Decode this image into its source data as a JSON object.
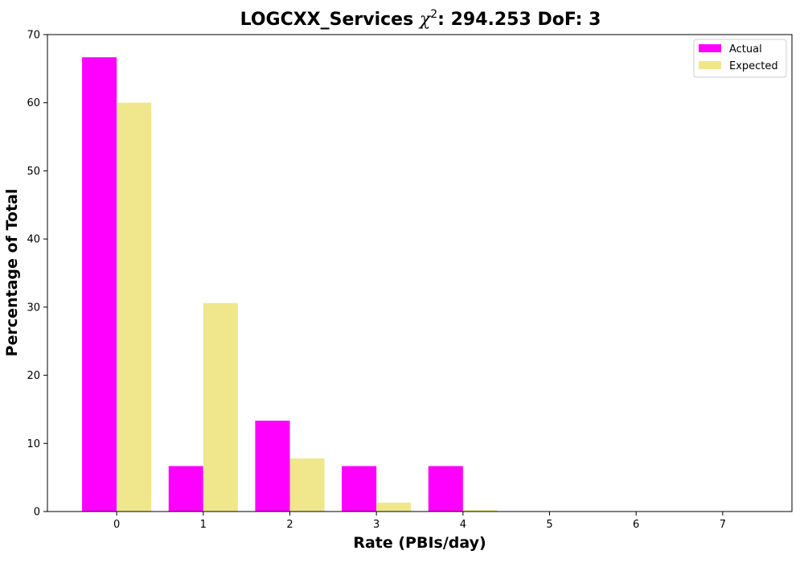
{
  "chart_data": {
    "type": "bar",
    "title_main": "LOGCXX_Services ",
    "title_chi": "χ",
    "title_sup": "2",
    "title_rest": ": 294.253 DoF: 3",
    "xlabel": "Rate (PBIs/day)",
    "ylabel": "Percentage of Total",
    "categories": [
      "0",
      "1",
      "2",
      "3",
      "4",
      "5",
      "6",
      "7"
    ],
    "x": [
      0,
      1,
      2,
      3,
      4,
      5,
      6,
      7
    ],
    "xlim": [
      -0.8,
      7.8
    ],
    "ylim": [
      0,
      70
    ],
    "yticks": [
      0,
      10,
      20,
      30,
      40,
      50,
      60,
      70
    ],
    "grid": false,
    "legend_position": "top-right",
    "series": [
      {
        "name": "Actual",
        "color": "#ff00ff",
        "values": [
          66.67,
          6.67,
          13.33,
          6.67,
          6.67,
          0,
          0,
          0
        ]
      },
      {
        "name": "Expected",
        "color": "#f0e68c",
        "values": [
          60.0,
          30.6,
          7.8,
          1.3,
          0.2,
          0.0,
          0.0,
          0.0
        ]
      }
    ]
  }
}
